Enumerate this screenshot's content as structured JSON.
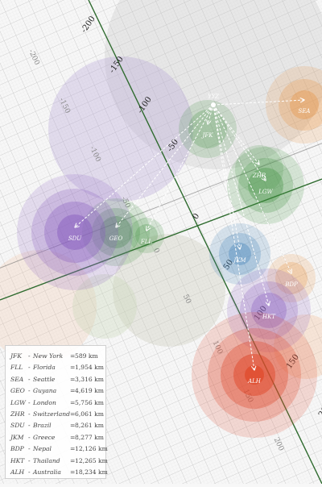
{
  "origin": {
    "code": "YYZ"
  },
  "axis_tick_labels": {
    "green_axis": [
      "-200",
      "-150",
      "-100",
      "-50",
      "0",
      "50",
      "100",
      "150",
      "200"
    ],
    "grey_axis": [
      "-200",
      "-150",
      "-100",
      "-50",
      "0",
      "50",
      "100",
      "150",
      "200"
    ]
  },
  "destinations": [
    {
      "code": "JFK",
      "place": "New York",
      "distance": "589 km",
      "color": "#3f8f3f"
    },
    {
      "code": "FLL",
      "place": "Florida",
      "distance": "1,954 km",
      "color": "#3f8f3f"
    },
    {
      "code": "SEA",
      "place": "Seattle",
      "distance": "3,316 km",
      "color": "#e8903c"
    },
    {
      "code": "GEO",
      "place": "Guyana",
      "distance": "4,619 km",
      "color": "#3f8f3f"
    },
    {
      "code": "LGW",
      "place": "London",
      "distance": "5,756 km",
      "color": "#3f8f3f"
    },
    {
      "code": "ZHR",
      "place": "Switzerland",
      "distance": "6,061 km",
      "color": "#3f8f3f"
    },
    {
      "code": "SDU",
      "place": "Brazil",
      "distance": "8,261 km",
      "color": "#8a5fc0"
    },
    {
      "code": "JKM",
      "place": "Greece",
      "distance": "8,277 km",
      "color": "#3c7fb8"
    },
    {
      "code": "BDP",
      "place": "Nepal",
      "distance": "12,126 km",
      "color": "#e8903c"
    },
    {
      "code": "HKT",
      "place": "Thailand",
      "distance": "12,265 km",
      "color": "#8a5fc0"
    },
    {
      "code": "ALH",
      "place": "Australia",
      "distance": "18,234 km",
      "color": "#e0482a"
    }
  ],
  "legend_separator": "-",
  "legend_equals": "="
}
